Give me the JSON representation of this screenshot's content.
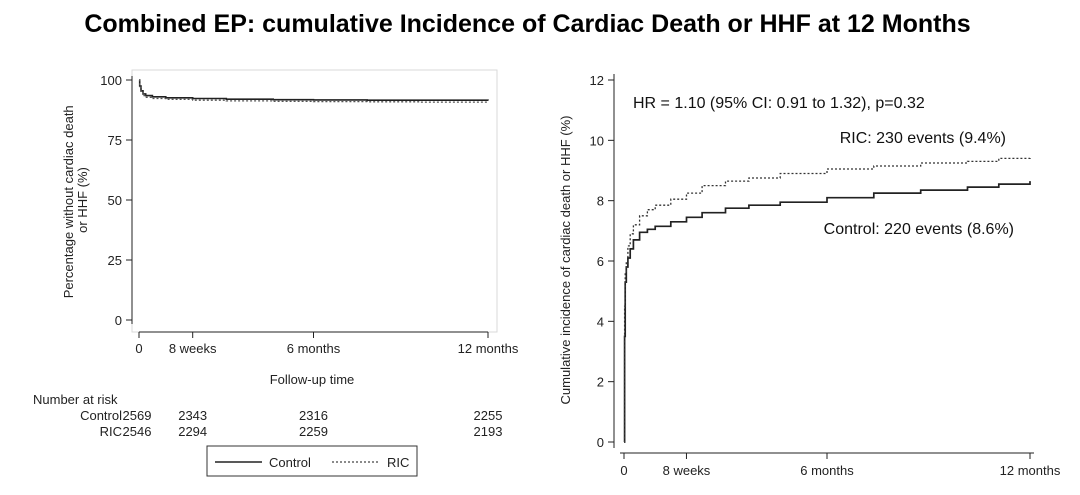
{
  "title": "Combined EP: cumulative Incidence of Cardiac Death or HHF at 12 Months",
  "chart_data": [
    {
      "type": "line",
      "ylabel_lines": [
        "Percentage without cardiac death",
        "or HHF (%)"
      ],
      "xlabel": "Follow-up time",
      "ylim": [
        0,
        100
      ],
      "x_ticks": [
        {
          "value": 0,
          "label": "0"
        },
        {
          "value": 8,
          "label": "8 weeks"
        },
        {
          "value": 26,
          "label": "6 months"
        },
        {
          "value": 52,
          "label": "12 months"
        }
      ],
      "y_ticks": [
        {
          "value": 0,
          "label": "0"
        },
        {
          "value": 25,
          "label": "25"
        },
        {
          "value": 50,
          "label": "50"
        },
        {
          "value": 75,
          "label": "75"
        },
        {
          "value": 100,
          "label": "100"
        }
      ],
      "series": [
        {
          "name": "Control",
          "style": "solid",
          "color": "#222222",
          "x": [
            0,
            0.1,
            0.3,
            0.6,
            1,
            2,
            4,
            8,
            13,
            20,
            26,
            34,
            42,
            52
          ],
          "values": [
            100,
            97.5,
            95.5,
            94.2,
            93.5,
            93.0,
            92.6,
            92.3,
            92.0,
            91.8,
            91.7,
            91.6,
            91.6,
            91.4
          ]
        },
        {
          "name": "RIC",
          "style": "dashed",
          "color": "#555555",
          "x": [
            0,
            0.1,
            0.3,
            0.6,
            1,
            2,
            4,
            8,
            13,
            20,
            26,
            34,
            42,
            52
          ],
          "values": [
            100,
            97.0,
            94.8,
            93.5,
            92.8,
            92.3,
            91.9,
            91.6,
            91.3,
            91.1,
            91.0,
            90.9,
            90.8,
            90.6
          ]
        }
      ],
      "number_at_risk": {
        "header": "Number at risk",
        "rows": [
          {
            "label": "Control",
            "values": [
              "2569",
              "2343",
              "2316",
              "2255"
            ]
          },
          {
            "label": "RIC",
            "values": [
              "2546",
              "2294",
              "2259",
              "2193"
            ]
          }
        ]
      },
      "legend": {
        "position": "bottom",
        "entries": [
          "Control",
          "RIC"
        ]
      }
    },
    {
      "type": "line",
      "ylabel": "Cumulative incidence of cardiac death or HHF (%)",
      "xlabel": "",
      "ylim": [
        0,
        12
      ],
      "x_ticks": [
        {
          "value": 0,
          "label": "0"
        },
        {
          "value": 8,
          "label": "8 weeks"
        },
        {
          "value": 26,
          "label": "6 months"
        },
        {
          "value": 52,
          "label": "12 months"
        }
      ],
      "y_ticks": [
        {
          "value": 0,
          "label": "0"
        },
        {
          "value": 2,
          "label": "2"
        },
        {
          "value": 4,
          "label": "4"
        },
        {
          "value": 6,
          "label": "6"
        },
        {
          "value": 8,
          "label": "8"
        },
        {
          "value": 10,
          "label": "10"
        },
        {
          "value": 12,
          "label": "12"
        }
      ],
      "series": [
        {
          "name": "Control",
          "style": "solid",
          "color": "#222222",
          "x": [
            0,
            0.08,
            0.15,
            0.3,
            0.5,
            0.8,
            1.2,
            2,
            3,
            4,
            6,
            8,
            10,
            13,
            16,
            20,
            26,
            32,
            38,
            44,
            48,
            52
          ],
          "values": [
            0,
            3.5,
            5.3,
            5.8,
            6.1,
            6.4,
            6.7,
            6.95,
            7.05,
            7.15,
            7.3,
            7.45,
            7.6,
            7.75,
            7.85,
            7.95,
            8.1,
            8.25,
            8.35,
            8.45,
            8.55,
            8.65
          ]
        },
        {
          "name": "RIC",
          "style": "dashed",
          "color": "#333333",
          "x": [
            0,
            0.08,
            0.15,
            0.3,
            0.5,
            0.8,
            1.2,
            2,
            3,
            4,
            6,
            8,
            10,
            13,
            16,
            20,
            26,
            32,
            38,
            44,
            48,
            52
          ],
          "values": [
            0,
            4.5,
            5.6,
            6.0,
            6.5,
            6.9,
            7.2,
            7.5,
            7.7,
            7.85,
            8.05,
            8.25,
            8.5,
            8.65,
            8.75,
            8.9,
            9.05,
            9.15,
            9.25,
            9.3,
            9.4,
            9.45
          ]
        }
      ],
      "annotations": {
        "hr": "HR = 1.10 (95% CI: 0.91 to 1.32), p=0.32",
        "ric": "RIC: 230 events (9.4%)",
        "control": "Control: 220 events (8.6%)"
      }
    }
  ]
}
